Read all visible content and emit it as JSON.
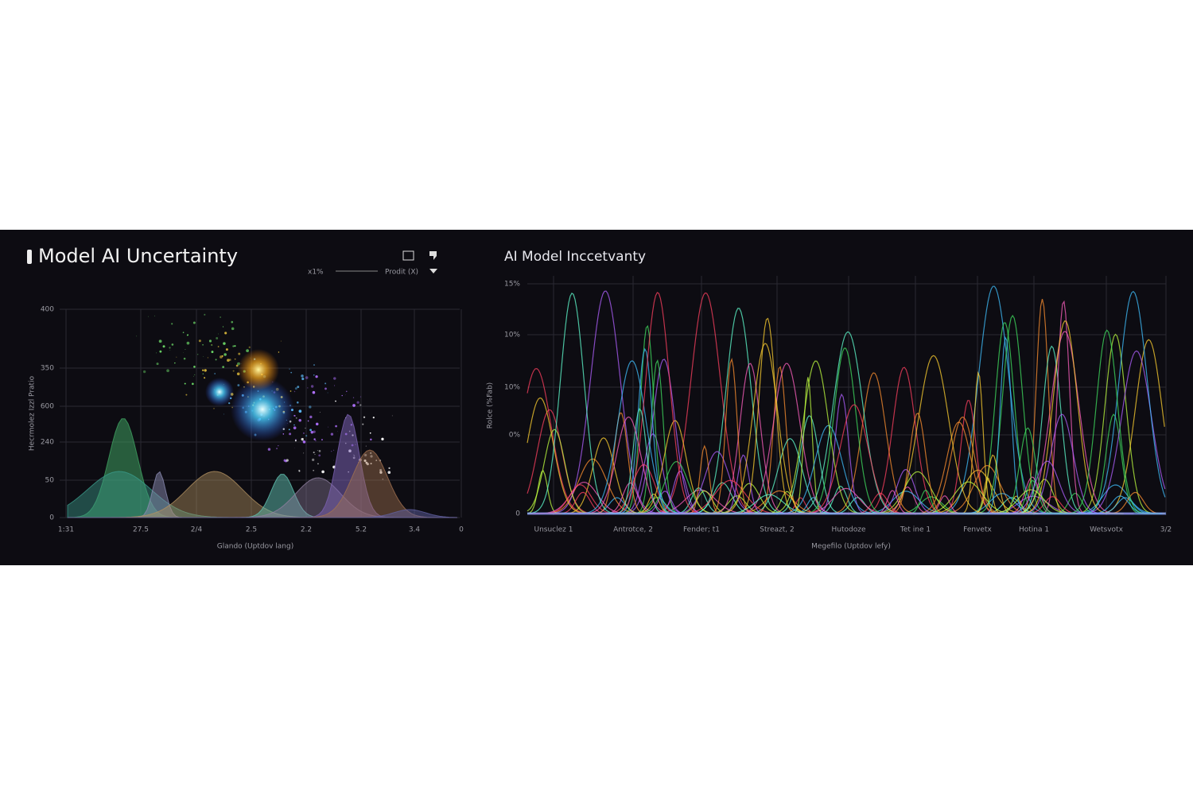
{
  "left_panel": {
    "title": "Model AI Uncertainty",
    "legend": [
      "x1%",
      "Prodit (X)"
    ],
    "y_axis_label": "Hecrmolez Izzl Pratio",
    "y_tick_labels": [
      "400",
      "350",
      "600",
      "240",
      "50",
      "0"
    ],
    "x_tick_labels": [
      "1:31",
      "27.5",
      "2/4",
      "2.5",
      "2.2",
      "5.2",
      "3.4",
      "0"
    ],
    "x_axis_label": "Glando (Uptdov lang)"
  },
  "right_panel": {
    "title": "AI Model Inccetvanty",
    "y_axis_label": "Rolce (%Fab)",
    "y_tick_labels": [
      "15%",
      "10%",
      "10%",
      "0%",
      "0"
    ],
    "x_tick_labels": [
      "Unsuclez 1",
      "Antrotce, 2",
      "Fender; t1",
      "Streazt, 2",
      "Hutodoze",
      "Tet ine 1",
      "Fenvetx",
      "Hotina 1",
      "Wetsvotx",
      "3/2"
    ],
    "x_axis_label": "Megefilo (Uptdov lefy)"
  }
}
